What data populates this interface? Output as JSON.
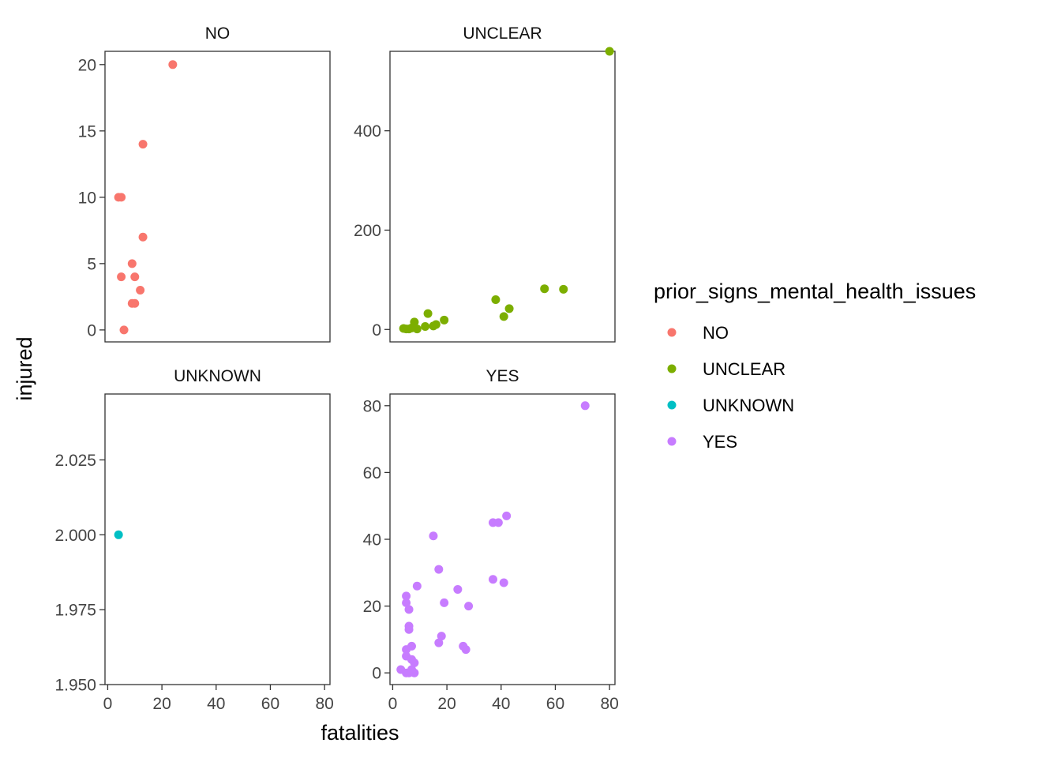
{
  "chart_data": {
    "type": "scatter",
    "facet_by": "prior_signs_mental_health_issues",
    "xlabel": "fatalities",
    "ylabel": "injured",
    "xlim": [
      -1,
      82
    ],
    "x_ticks": [
      0,
      20,
      40,
      60,
      80
    ],
    "legend": {
      "title": "prior_signs_mental_health_issues",
      "position": "right",
      "entries": [
        {
          "label": "NO",
          "color": "#F8766D"
        },
        {
          "label": "UNCLEAR",
          "color": "#7CAE00"
        },
        {
          "label": "UNKNOWN",
          "color": "#00BFC4"
        },
        {
          "label": "YES",
          "color": "#C77CFF"
        }
      ]
    },
    "panels": [
      {
        "title": "NO",
        "color": "#F8766D",
        "ylim": [
          -0.9,
          21
        ],
        "y_ticks": [
          0,
          5,
          10,
          15,
          20
        ],
        "y_tick_labels": [
          "0",
          "5",
          "10",
          "15",
          "20"
        ],
        "points": [
          [
            24,
            20
          ],
          [
            13,
            14
          ],
          [
            4,
            10
          ],
          [
            5,
            10
          ],
          [
            13,
            7
          ],
          [
            9,
            5
          ],
          [
            5,
            4
          ],
          [
            10,
            4
          ],
          [
            12,
            3
          ],
          [
            9,
            2
          ],
          [
            10,
            2
          ],
          [
            6,
            0
          ]
        ]
      },
      {
        "title": "UNCLEAR",
        "color": "#7CAE00",
        "ylim": [
          -25,
          560
        ],
        "y_ticks": [
          0,
          200,
          400
        ],
        "y_tick_labels": [
          "0",
          "200",
          "400"
        ],
        "points": [
          [
            80,
            560
          ],
          [
            56,
            82
          ],
          [
            63,
            81
          ],
          [
            38,
            60
          ],
          [
            43,
            42
          ],
          [
            41,
            26
          ],
          [
            13,
            32
          ],
          [
            19,
            19
          ],
          [
            16,
            10
          ],
          [
            15,
            7
          ],
          [
            12,
            6
          ],
          [
            8,
            15
          ],
          [
            4,
            2
          ],
          [
            6,
            1
          ],
          [
            7,
            3
          ],
          [
            9,
            1
          ],
          [
            5,
            1
          ]
        ]
      },
      {
        "title": "UNKNOWN",
        "color": "#00BFC4",
        "ylim": [
          1.95,
          2.047
        ],
        "y_ticks": [
          1.95,
          1.975,
          2.0,
          2.025
        ],
        "y_tick_labels": [
          "1.950",
          "1.975",
          "2.000",
          "2.025"
        ],
        "points": [
          [
            4,
            2.0
          ]
        ]
      },
      {
        "title": "YES",
        "color": "#C77CFF",
        "ylim": [
          -3.5,
          83.5
        ],
        "y_ticks": [
          0,
          20,
          40,
          60,
          80
        ],
        "y_tick_labels": [
          "0",
          "20",
          "40",
          "60",
          "80"
        ],
        "points": [
          [
            71,
            80
          ],
          [
            42,
            47
          ],
          [
            37,
            45
          ],
          [
            39,
            45
          ],
          [
            15,
            41
          ],
          [
            17,
            31
          ],
          [
            37,
            28
          ],
          [
            41,
            27
          ],
          [
            9,
            26
          ],
          [
            24,
            25
          ],
          [
            5,
            23
          ],
          [
            5,
            21
          ],
          [
            19,
            21
          ],
          [
            28,
            20
          ],
          [
            6,
            19
          ],
          [
            6,
            14
          ],
          [
            6,
            13
          ],
          [
            18,
            11
          ],
          [
            17,
            9
          ],
          [
            7,
            8
          ],
          [
            26,
            8
          ],
          [
            27,
            7
          ],
          [
            5,
            7
          ],
          [
            5,
            5
          ],
          [
            7,
            4
          ],
          [
            8,
            3
          ],
          [
            3,
            1
          ],
          [
            5,
            0
          ],
          [
            6,
            0
          ],
          [
            8,
            0
          ],
          [
            7,
            1
          ]
        ]
      }
    ]
  }
}
